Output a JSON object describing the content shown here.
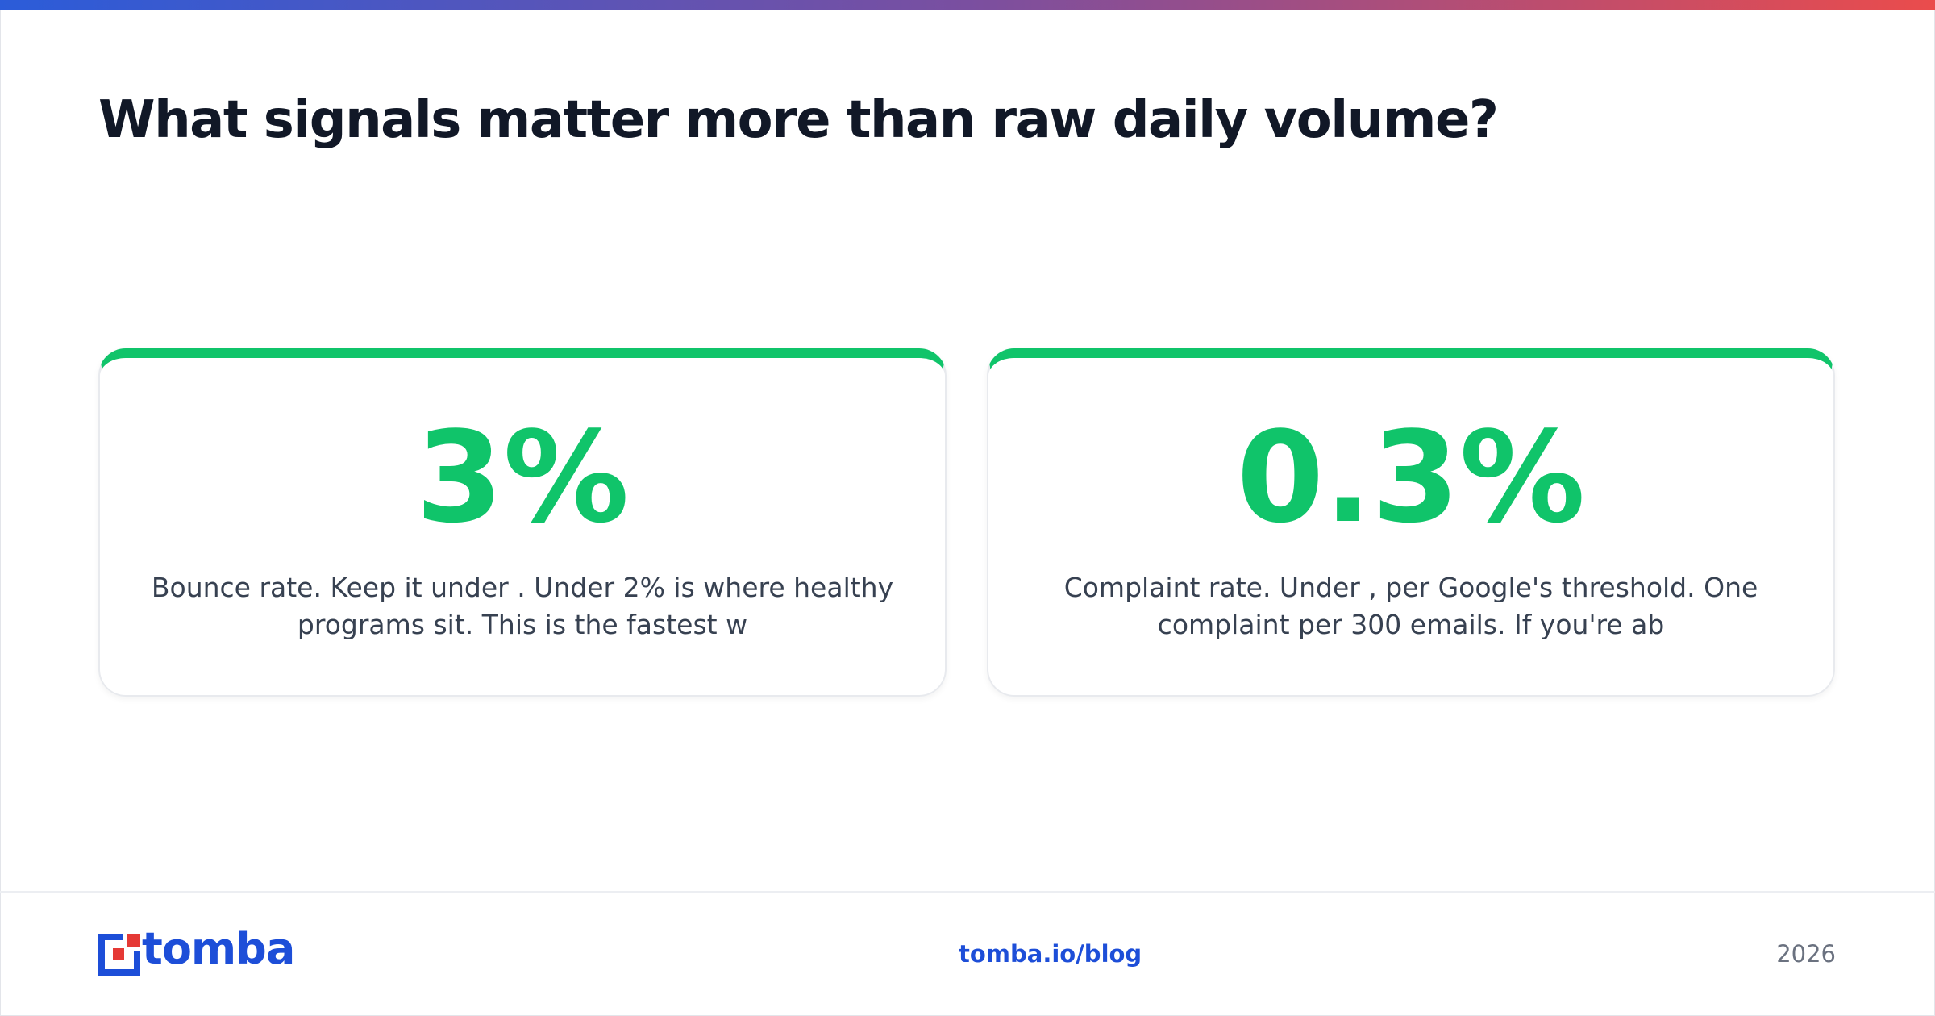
{
  "header": {
    "title": "What signals matter more than raw daily volume?"
  },
  "cards": [
    {
      "stat": "3%",
      "text": "Bounce rate. Keep it under . Under 2% is where healthy programs sit. This is the fastest w"
    },
    {
      "stat": "0.3%",
      "text": "Complaint rate. Under , per Google's threshold. One complaint per 300 emails. If you're ab"
    }
  ],
  "footer": {
    "brand": "tomba",
    "url": "tomba.io/blog",
    "year": "2026"
  }
}
